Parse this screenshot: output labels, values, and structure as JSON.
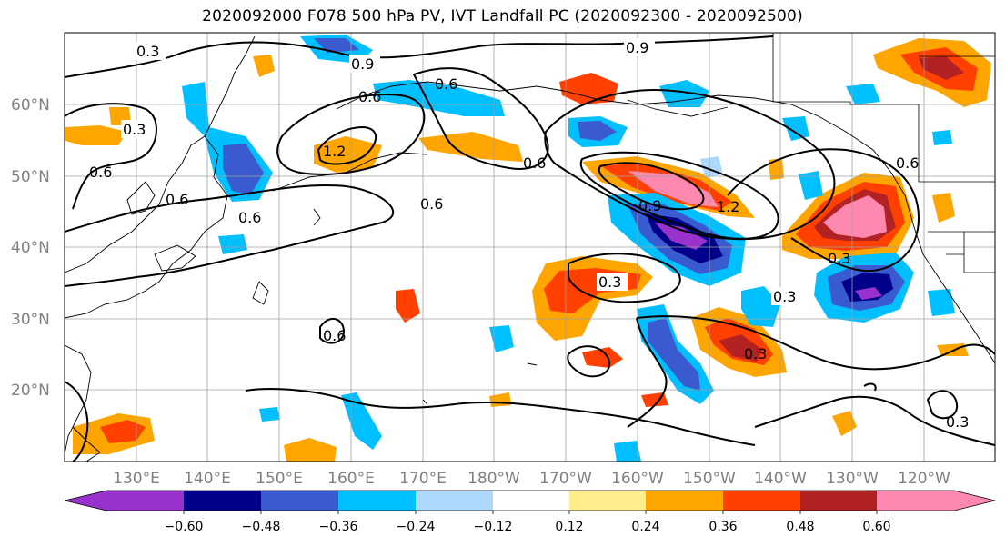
{
  "title": "2020092000 F078 500 hPa PV, IVT Landfall PC (2020092300 - 2020092500)",
  "map": {
    "lat_labels": [
      "60°N",
      "50°N",
      "40°N",
      "30°N",
      "20°N"
    ],
    "lon_labels": [
      "130°E",
      "140°E",
      "150°E",
      "160°E",
      "170°E",
      "180°W",
      "170°W",
      "160°W",
      "150°W",
      "140°W",
      "130°W",
      "120°W"
    ],
    "contour_labels": [
      "0.3",
      "0.9",
      "0.6",
      "0.9",
      "0.3",
      "0.6",
      "1.2",
      "0.6",
      "0.6",
      "0.6",
      "0.6",
      "0.9",
      "1.2",
      "0.6",
      "0.3",
      "0.3",
      "0.3",
      "0.6",
      "0.3",
      "0.3",
      "0.6"
    ]
  },
  "colorbar": {
    "colors": [
      "#9932cc",
      "#00008b",
      "#3a5bd0",
      "#00bfff",
      "#add8ff",
      "#ffffff",
      "#ffec8b",
      "#ffa500",
      "#ff4000",
      "#b22222",
      "#ff88b0"
    ],
    "ticks": [
      "−0.60",
      "−0.48",
      "−0.36",
      "−0.24",
      "−0.12",
      "0.12",
      "0.24",
      "0.36",
      "0.48",
      "0.60"
    ]
  }
}
